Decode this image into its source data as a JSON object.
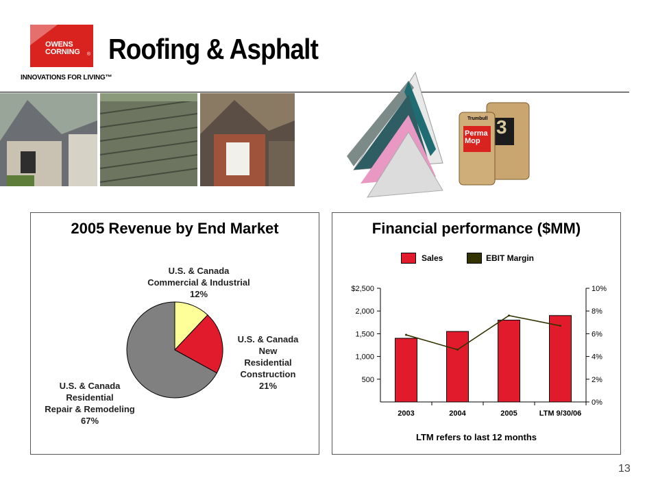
{
  "logo": {
    "line1": "OWENS",
    "line2": "CORNING",
    "reg": "®",
    "tagline": "INNOVATIONS FOR LIVING™"
  },
  "title": "Roofing & Asphalt",
  "products": {
    "brand": "Trumbull",
    "product_name": "Perma Mop",
    "roll_number": "3"
  },
  "revenue_panel": {
    "title": "2005 Revenue by End Market",
    "labels": [
      {
        "lines": [
          "U.S. & Canada",
          "Commercial & Industrial",
          "12%"
        ]
      },
      {
        "lines": [
          "U.S. & Canada",
          "New",
          "Residential",
          "Construction",
          "21%"
        ]
      },
      {
        "lines": [
          "U.S. & Canada",
          "Residential",
          "Repair & Remodeling",
          "67%"
        ]
      }
    ]
  },
  "financial_panel": {
    "title": "Financial performance ($MM)",
    "legend": [
      {
        "name": "Sales",
        "color": "#e21b2c"
      },
      {
        "name": "EBIT Margin",
        "color": "#333300"
      }
    ],
    "left_ticks": [
      "$2,500",
      "2,000",
      "1,500",
      "1,000",
      "500"
    ],
    "right_ticks": [
      "10%",
      "8%",
      "6%",
      "4%",
      "2%",
      "0%"
    ],
    "note": "LTM refers to last 12 months"
  },
  "chart_data": [
    {
      "type": "pie",
      "title": "2005 Revenue by End Market",
      "categories": [
        "U.S. & Canada Commercial & Industrial",
        "U.S. & Canada New Residential Construction",
        "U.S. & Canada Residential Repair & Remodeling"
      ],
      "values": [
        12,
        21,
        67
      ],
      "colors": [
        "#ffff99",
        "#e21b2c",
        "#808080"
      ]
    },
    {
      "type": "bar",
      "title": "Financial performance ($MM)",
      "categories": [
        "2003",
        "2004",
        "2005",
        "LTM 9/30/06"
      ],
      "series": [
        {
          "name": "Sales",
          "type": "bar",
          "axis": "left",
          "values": [
            1400,
            1550,
            1800,
            1900
          ],
          "color": "#e21b2c"
        },
        {
          "name": "EBIT Margin",
          "type": "line",
          "axis": "right",
          "values": [
            5.9,
            4.6,
            7.6,
            6.7
          ],
          "color": "#333300"
        }
      ],
      "ylim": [
        0,
        2500
      ],
      "y2lim": [
        0,
        10
      ],
      "legend": "top"
    }
  ],
  "page_number": "13"
}
